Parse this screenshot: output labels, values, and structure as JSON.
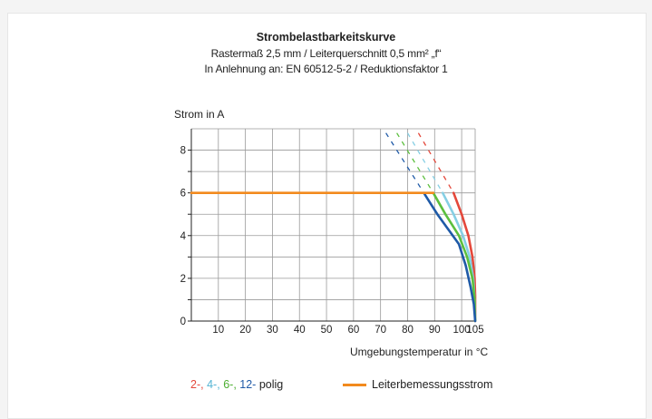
{
  "chart_data": {
    "type": "line",
    "title": "Strombelastbarkeitskurve",
    "subtitle_lines": [
      "Rastermaß 2,5 mm / Leiterquerschnitt 0,5 mm² „f“",
      "In Anlehnung an: EN 60512-5-2 / Reduktionsfaktor 1"
    ],
    "ylabel": "Strom in A",
    "xlabel": "Umgebungstemperatur in °C",
    "xlim": [
      0,
      105
    ],
    "ylim": [
      0,
      9
    ],
    "xticks": [
      10,
      20,
      30,
      40,
      50,
      60,
      70,
      80,
      90,
      100,
      105
    ],
    "yticks": [
      0,
      2,
      4,
      6,
      8
    ],
    "grid": true,
    "series": [
      {
        "name": "2-",
        "color": "#e4483b",
        "solid": [
          [
            97,
            6
          ],
          [
            100,
            5
          ],
          [
            102.5,
            4
          ],
          [
            104,
            3
          ],
          [
            104.8,
            2
          ],
          [
            105,
            1.2
          ],
          [
            105,
            0
          ]
        ],
        "dashed": [
          [
            84,
            8.8
          ],
          [
            97,
            6
          ]
        ]
      },
      {
        "name": "4-",
        "color": "#86cfe4",
        "solid": [
          [
            93,
            6
          ],
          [
            97,
            5
          ],
          [
            100.5,
            4
          ],
          [
            103,
            3
          ],
          [
            104.3,
            2
          ],
          [
            104.8,
            1
          ],
          [
            105,
            0
          ]
        ],
        "dashed": [
          [
            80,
            8.8
          ],
          [
            93,
            6
          ]
        ]
      },
      {
        "name": "6-",
        "color": "#5cbf3e",
        "solid": [
          [
            89.5,
            6
          ],
          [
            94,
            5
          ],
          [
            99,
            4
          ],
          [
            102,
            3
          ],
          [
            104,
            2
          ],
          [
            104.8,
            1
          ],
          [
            105,
            0
          ]
        ],
        "dashed": [
          [
            76,
            8.8
          ],
          [
            89.5,
            6
          ]
        ]
      },
      {
        "name": "12-",
        "color": "#1f5aa7",
        "solid": [
          [
            86,
            6
          ],
          [
            89,
            5.4
          ],
          [
            91,
            5
          ],
          [
            95,
            4.3
          ],
          [
            99,
            3.6
          ],
          [
            101.5,
            2.6
          ],
          [
            103.3,
            1.6
          ],
          [
            104.5,
            0.8
          ],
          [
            105,
            0
          ]
        ],
        "dashed": [
          [
            72,
            8.8
          ],
          [
            86,
            6
          ]
        ]
      },
      {
        "name": "Leiterbemessungsstrom",
        "color": "#f28a1d",
        "solid": [
          [
            0,
            6
          ],
          [
            89.5,
            6
          ]
        ],
        "dashed": []
      }
    ],
    "legend": {
      "placement": "bottom",
      "pole_suffix": "polig",
      "pole_text": " polig",
      "separator": ",",
      "rated_current_label": "Leiterbemessungsstrom"
    }
  }
}
